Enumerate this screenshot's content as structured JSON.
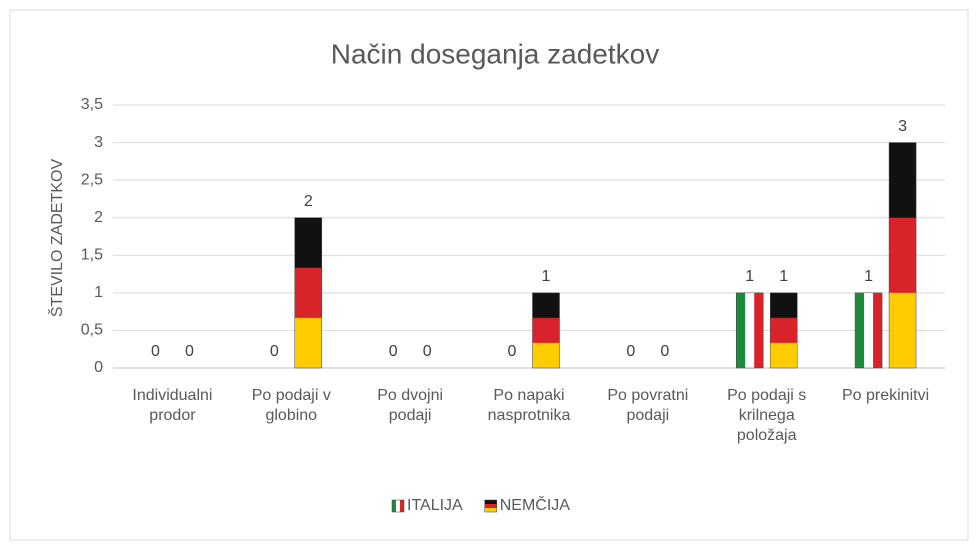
{
  "chart_data": {
    "type": "bar",
    "title": "Način doseganja zadetkov",
    "y_label": "ŠTEVILO ZADETKOV",
    "categories": [
      "Individualni prodor",
      "Po podaji v globino",
      "Po dvojni podaji",
      "Po napaki nasprotnika",
      "Po povratni podaji",
      "Po podaji s krilnega položaja",
      "Po prekinitvi"
    ],
    "series": [
      {
        "name": "ITALIJA",
        "stripes": "vertical",
        "colors": [
          "#1e8a3c",
          "#ffffff",
          "#d9232b"
        ],
        "values": [
          0,
          0,
          0,
          0,
          0,
          1,
          1
        ]
      },
      {
        "name": "NEMČIJA",
        "stripes": "horizontal",
        "colors": [
          "#111111",
          "#d9232b",
          "#ffcc00"
        ],
        "values": [
          0,
          2,
          0,
          1,
          0,
          1,
          3
        ]
      }
    ],
    "ylim": [
      0,
      3.5
    ],
    "yticks": [
      0,
      {
        "value": 0.5,
        "label": "0,5"
      },
      1,
      {
        "value": 1.5,
        "label": "1,5"
      },
      2,
      {
        "value": 2.5,
        "label": "2,5"
      },
      3,
      {
        "value": 3.5,
        "label": "3,5"
      }
    ],
    "grid": true,
    "legend": "bottom"
  }
}
